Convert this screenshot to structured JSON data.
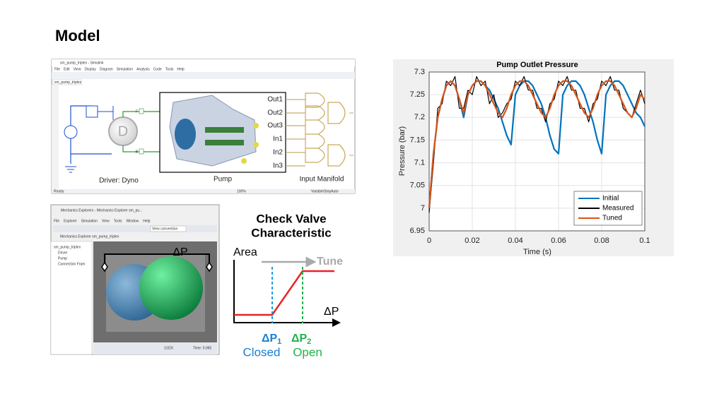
{
  "title": "Model",
  "simulink": {
    "window_title": "sm_pump_triplex - Simulink",
    "menu": [
      "File",
      "Edit",
      "View",
      "Display",
      "Diagram",
      "Simulation",
      "Analysis",
      "Code",
      "Tools",
      "Help"
    ],
    "tab": "sm_pump_triplex",
    "ports_out": [
      "Out1",
      "Out2",
      "Out3"
    ],
    "ports_in": [
      "In1",
      "In2",
      "In3"
    ],
    "port_f": "F",
    "port_b": "B",
    "pump": "Pump",
    "manifold": "Input Manifold",
    "driver": "Driver: Dyno",
    "status": "Ready",
    "zoom": "100%",
    "solver": "VariableStepAuto"
  },
  "mechanics": {
    "window_title": "Mechanics Explorers - Mechanics Explorer sm_pu...",
    "menu": [
      "File",
      "Explorer",
      "Simulation",
      "View",
      "Tools",
      "Window",
      "Help"
    ],
    "view_convention": "View convention",
    "tab": "Mechanics Explorer sm_pump_triplex",
    "tree": [
      "sm_pump_triplex",
      "Driver",
      "Pump",
      "Connection Fram"
    ],
    "dp": "ΔP",
    "speed": "1/32X",
    "time": "Time: 0.065"
  },
  "check_valve": {
    "title_line1": "Check Valve",
    "title_line2": "Characteristic",
    "y_label": "Area",
    "x_label": "ΔP",
    "tune": "Tune",
    "p1_symbol": "ΔP",
    "p1_sub": "1",
    "p2_symbol": "ΔP",
    "p2_sub": "2",
    "closed": "Closed",
    "open": "Open"
  },
  "chart_data": {
    "type": "line",
    "title": "Pump Outlet Pressure",
    "x_label": "Time (s)",
    "y_label": "Pressure (bar)",
    "x": [
      0,
      0.002,
      0.004,
      0.006,
      0.008,
      0.01,
      0.012,
      0.014,
      0.016,
      0.018,
      0.02,
      0.022,
      0.024,
      0.026,
      0.028,
      0.03,
      0.032,
      0.034,
      0.036,
      0.038,
      0.04,
      0.042,
      0.044,
      0.046,
      0.048,
      0.05,
      0.052,
      0.054,
      0.056,
      0.058,
      0.06,
      0.062,
      0.064,
      0.066,
      0.068,
      0.07,
      0.072,
      0.074,
      0.076,
      0.078,
      0.08,
      0.082,
      0.084,
      0.086,
      0.088,
      0.09,
      0.092,
      0.094,
      0.096,
      0.098,
      0.1
    ],
    "series": [
      {
        "name": "Initial",
        "color": "#0072bd",
        "values": [
          7.0,
          7.12,
          7.2,
          7.24,
          7.27,
          7.28,
          7.27,
          7.24,
          7.2,
          7.25,
          7.27,
          7.28,
          7.28,
          7.27,
          7.26,
          7.24,
          7.22,
          7.19,
          7.16,
          7.14,
          7.25,
          7.27,
          7.28,
          7.28,
          7.27,
          7.25,
          7.23,
          7.2,
          7.16,
          7.13,
          7.12,
          7.25,
          7.27,
          7.28,
          7.28,
          7.27,
          7.25,
          7.22,
          7.19,
          7.15,
          7.12,
          7.25,
          7.27,
          7.28,
          7.28,
          7.27,
          7.25,
          7.23,
          7.21,
          7.2,
          7.18
        ]
      },
      {
        "name": "Measured",
        "color": "#000000",
        "values": [
          6.99,
          7.1,
          7.22,
          7.23,
          7.28,
          7.27,
          7.29,
          7.22,
          7.22,
          7.26,
          7.25,
          7.29,
          7.27,
          7.28,
          7.23,
          7.25,
          7.2,
          7.21,
          7.23,
          7.24,
          7.28,
          7.27,
          7.29,
          7.26,
          7.26,
          7.22,
          7.22,
          7.19,
          7.23,
          7.24,
          7.28,
          7.27,
          7.29,
          7.26,
          7.26,
          7.22,
          7.22,
          7.19,
          7.23,
          7.24,
          7.28,
          7.27,
          7.29,
          7.26,
          7.26,
          7.22,
          7.21,
          7.2,
          7.23,
          7.26,
          7.23
        ]
      },
      {
        "name": "Tuned",
        "color": "#d95319",
        "values": [
          7.0,
          7.12,
          7.2,
          7.24,
          7.27,
          7.28,
          7.27,
          7.24,
          7.21,
          7.25,
          7.27,
          7.28,
          7.28,
          7.27,
          7.25,
          7.23,
          7.21,
          7.2,
          7.22,
          7.25,
          7.27,
          7.28,
          7.28,
          7.27,
          7.25,
          7.23,
          7.21,
          7.2,
          7.22,
          7.25,
          7.27,
          7.28,
          7.28,
          7.27,
          7.25,
          7.23,
          7.21,
          7.2,
          7.22,
          7.25,
          7.27,
          7.28,
          7.28,
          7.27,
          7.25,
          7.23,
          7.21,
          7.2,
          7.22,
          7.25,
          7.24
        ]
      }
    ],
    "xlim": [
      0,
      0.1
    ],
    "xticks": [
      0,
      0.02,
      0.04,
      0.06,
      0.08,
      0.1
    ],
    "ylim": [
      6.95,
      7.3
    ],
    "yticks": [
      6.95,
      7,
      7.05,
      7.1,
      7.15,
      7.2,
      7.25,
      7.3
    ],
    "grid": true,
    "legend": "lower right"
  }
}
